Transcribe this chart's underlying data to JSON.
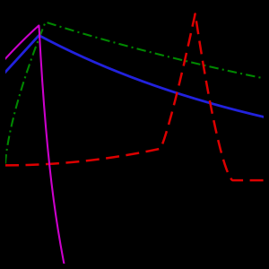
{
  "background_color": "#000000",
  "figsize": [
    3.0,
    3.0
  ],
  "dpi": 100,
  "curves": {
    "electron_4MeV": {
      "color": "#cc00cc",
      "linewidth": 1.5
    },
    "xray": {
      "color": "#2222dd",
      "linewidth": 2.0
    },
    "proton": {
      "color": "#dd0000",
      "linewidth": 1.8,
      "dash_on": 6,
      "dash_off": 3
    },
    "cobalt": {
      "color": "#008800",
      "linewidth": 1.5,
      "dash_on": 5,
      "dash_off": 2,
      "dot": 1,
      "dot_off": 2
    }
  },
  "xlim": [
    0.0,
    1.0
  ],
  "ylim": [
    -0.5,
    1.05
  ]
}
